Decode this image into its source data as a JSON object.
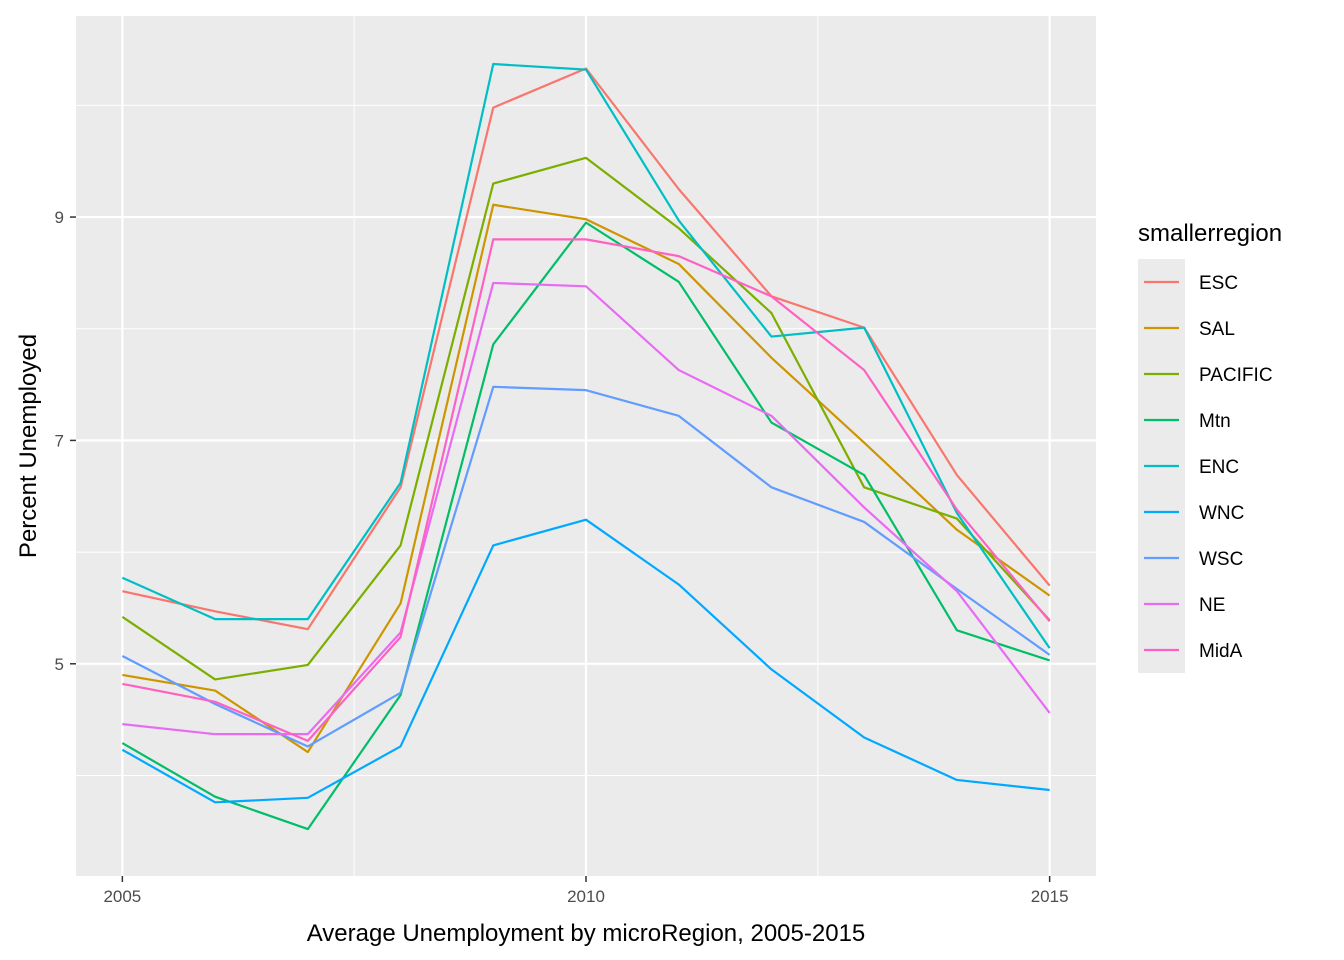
{
  "chart_data": {
    "type": "line",
    "xlabel": "Average Unemployment by microRegion, 2005-2015",
    "ylabel": "Percent Unemployed",
    "xlim": [
      2004.5,
      2015.5
    ],
    "ylim": [
      3.1,
      10.8
    ],
    "x_ticks": [
      2005,
      2010,
      2015
    ],
    "x_tick_labels": [
      "2005",
      "2010",
      "2015"
    ],
    "y_ticks": [
      5,
      7,
      9
    ],
    "y_tick_labels": [
      "5",
      "7",
      "9"
    ],
    "grid": true,
    "legend_title": "smallerregion",
    "legend_position": "right",
    "x": [
      2005,
      2006,
      2007,
      2008,
      2009,
      2010,
      2011,
      2012,
      2013,
      2014,
      2015
    ],
    "series": [
      {
        "name": "ESC",
        "color": "#F8766D",
        "values": [
          5.65,
          5.47,
          5.31,
          6.58,
          9.98,
          10.33,
          9.25,
          8.29,
          8.01,
          6.69,
          5.7
        ]
      },
      {
        "name": "SAL",
        "color": "#CD9600",
        "values": [
          4.9,
          4.76,
          4.21,
          5.54,
          9.11,
          8.98,
          8.58,
          7.74,
          6.98,
          6.2,
          5.61
        ]
      },
      {
        "name": "PACIFIC",
        "color": "#7CAE00",
        "values": [
          5.42,
          4.86,
          4.99,
          6.06,
          9.3,
          9.53,
          8.9,
          8.14,
          6.58,
          6.3,
          5.39
        ]
      },
      {
        "name": "Mtn",
        "color": "#00BE67",
        "values": [
          4.29,
          3.81,
          3.52,
          4.72,
          7.86,
          8.95,
          8.42,
          7.16,
          6.69,
          5.3,
          5.03
        ]
      },
      {
        "name": "ENC",
        "color": "#00BFC4",
        "values": [
          5.77,
          5.4,
          5.4,
          6.62,
          10.37,
          10.32,
          8.97,
          7.93,
          8.01,
          6.35,
          5.14
        ]
      },
      {
        "name": "WNC",
        "color": "#00A9FF",
        "values": [
          4.23,
          3.76,
          3.8,
          4.26,
          6.06,
          6.29,
          5.71,
          4.95,
          4.34,
          3.96,
          3.87
        ]
      },
      {
        "name": "WSC",
        "color": "#619CFF",
        "values": [
          5.07,
          4.64,
          4.26,
          4.74,
          7.48,
          7.45,
          7.22,
          6.58,
          6.27,
          5.67,
          5.08
        ]
      },
      {
        "name": "NE",
        "color": "#E76BF3",
        "values": [
          4.46,
          4.37,
          4.37,
          5.28,
          8.41,
          8.38,
          7.63,
          7.22,
          6.4,
          5.65,
          4.56
        ]
      },
      {
        "name": "MidA",
        "color": "#FF61C3",
        "values": [
          4.82,
          4.66,
          4.31,
          5.24,
          8.8,
          8.8,
          8.65,
          8.29,
          7.63,
          6.38,
          5.38
        ]
      }
    ]
  }
}
